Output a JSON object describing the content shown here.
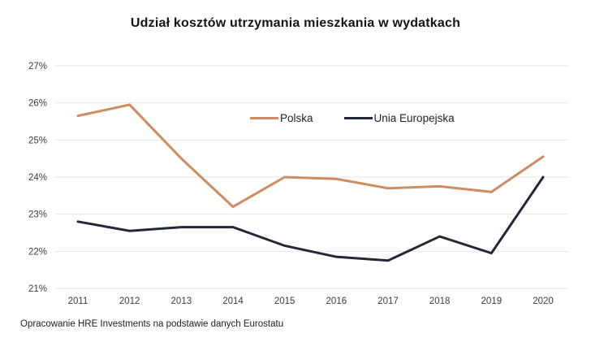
{
  "chart_data": {
    "type": "line",
    "title": "Udział kosztów utrzymania mieszkania w wydatkach",
    "categories": [
      "2011",
      "2012",
      "2013",
      "2014",
      "2015",
      "2016",
      "2017",
      "2018",
      "2019",
      "2020"
    ],
    "series": [
      {
        "name": "Polska",
        "color": "#cd8c62",
        "values": [
          25.65,
          25.95,
          24.5,
          23.2,
          24.0,
          23.95,
          23.7,
          23.75,
          23.6,
          24.55
        ]
      },
      {
        "name": "Unia Europejska",
        "color": "#222838",
        "values": [
          22.8,
          22.55,
          22.65,
          22.65,
          22.15,
          21.85,
          21.75,
          22.4,
          21.95,
          24.0
        ]
      }
    ],
    "y_ticks": [
      "27%",
      "26%",
      "25%",
      "24%",
      "23%",
      "22%",
      "21%"
    ],
    "y_max": 27,
    "y_min": 21,
    "y_step": 1,
    "xlabel": "",
    "ylabel": "",
    "grid": true,
    "legend_position": "inside-top-center"
  },
  "footer": {
    "source": "Opracowanie HRE Investments na podstawie danych Eurostatu"
  },
  "colors": {
    "background": "#ffffff",
    "gridline": "#e4e4e4",
    "tick_text": "#3d3d3d",
    "title_text": "#141414"
  }
}
